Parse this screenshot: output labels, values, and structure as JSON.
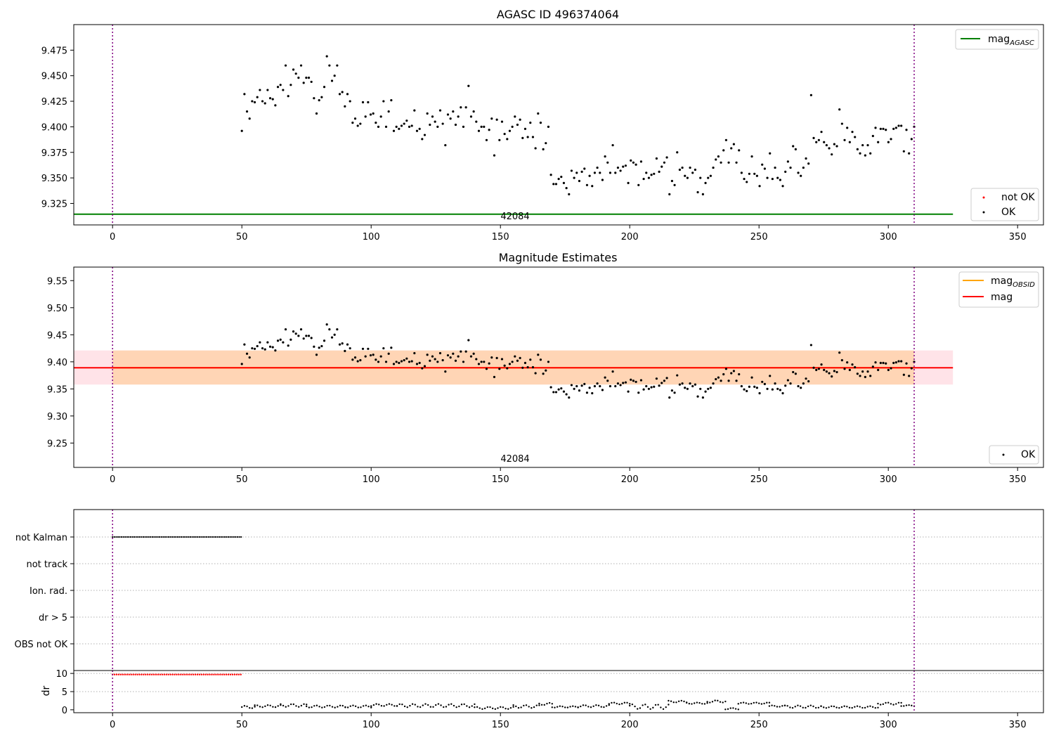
{
  "chart_data": [
    {
      "type": "scatter",
      "title": "AGASC ID 496374064",
      "xlim": [
        -15,
        360
      ],
      "ylim": [
        9.304,
        9.5
      ],
      "xticks": [
        0,
        50,
        100,
        150,
        200,
        250,
        300,
        350
      ],
      "yticks": [
        9.325,
        9.35,
        9.375,
        9.4,
        9.425,
        9.45,
        9.475
      ],
      "ytick_format": 3,
      "grid": false,
      "vlines": [
        0,
        310
      ],
      "annotation": {
        "text": "42084",
        "x": 155,
        "y": 9.3115
      },
      "hline": {
        "name": "mag_AGASC",
        "label_main": "mag",
        "label_sub": "AGASC",
        "y": 9.3145,
        "x": [
          -15,
          325
        ],
        "color": "#008000"
      },
      "legend_line_placement": "top-right",
      "legend_points_placement": "lower-right",
      "legend_points": [
        {
          "name": "not OK",
          "color": "#ff0000"
        },
        {
          "name": "OK",
          "color": "#000000"
        }
      ],
      "series_ref": "ok_points"
    },
    {
      "type": "scatter",
      "title": "Magnitude Estimates",
      "xlim": [
        -15,
        360
      ],
      "ylim": [
        9.205,
        9.575
      ],
      "xticks": [
        0,
        50,
        100,
        150,
        200,
        250,
        300,
        350
      ],
      "yticks": [
        9.25,
        9.3,
        9.35,
        9.4,
        9.45,
        9.5,
        9.55
      ],
      "ytick_format": 2,
      "grid": false,
      "vlines": [
        0,
        310
      ],
      "annotation": {
        "text": "42084",
        "x": 155,
        "y": 9.216
      },
      "band_pink": {
        "y": [
          9.358,
          9.421
        ],
        "x": [
          -15,
          325
        ],
        "color": "#ffc0cb"
      },
      "band_orange": {
        "y": [
          9.358,
          9.421
        ],
        "x": [
          0,
          310
        ],
        "color": "#ffa500"
      },
      "hline_orange": {
        "name": "mag_OBSID",
        "label_main": "mag",
        "label_sub": "OBSID",
        "y": 9.389,
        "x": [
          0,
          310
        ],
        "color": "#ffa500"
      },
      "hline_red": {
        "name": "mag",
        "y": 9.389,
        "x": [
          -15,
          325
        ],
        "color": "#ff0000"
      },
      "legend_line_placement": "top-right",
      "legend_points_placement": "lower-right",
      "legend_points": [
        {
          "name": "OK",
          "color": "#000000"
        }
      ],
      "series_ref": "ok_points"
    },
    {
      "type": "scatter",
      "title": "",
      "ylabel": "",
      "xlim": [
        -15,
        360
      ],
      "categories": [
        "not Kalman",
        "not track",
        "Ion. rad.",
        "dr > 5",
        "OBS not OK"
      ],
      "flags": {
        "not Kalman": [
          0,
          50
        ]
      },
      "vlines": [
        0,
        310
      ]
    },
    {
      "type": "scatter",
      "title": "",
      "ylabel": "dr",
      "xlim": [
        -15,
        360
      ],
      "ylim": [
        -0.8,
        10.8
      ],
      "xticks": [
        0,
        50,
        100,
        150,
        200,
        250,
        300,
        350
      ],
      "yticks": [
        0,
        5,
        10
      ],
      "vlines": [
        0,
        310
      ],
      "red_points": {
        "x": [
          0,
          50
        ],
        "y": 9.7,
        "color": "#ff0000"
      },
      "dr_segments": [
        {
          "x": [
            50,
            55
          ],
          "y": [
            0.4,
            1.1
          ]
        },
        {
          "x": [
            55,
            65
          ],
          "y": [
            0.7,
            1.3
          ]
        },
        {
          "x": [
            65,
            75
          ],
          "y": [
            0.8,
            1.6
          ]
        },
        {
          "x": [
            75,
            90
          ],
          "y": [
            0.6,
            1.2
          ]
        },
        {
          "x": [
            90,
            100
          ],
          "y": [
            0.6,
            1.2
          ]
        },
        {
          "x": [
            100,
            110
          ],
          "y": [
            1.0,
            1.6
          ]
        },
        {
          "x": [
            110,
            140
          ],
          "y": [
            0.7,
            1.6
          ]
        },
        {
          "x": [
            140,
            155
          ],
          "y": [
            0.2,
            0.8
          ]
        },
        {
          "x": [
            155,
            165
          ],
          "y": [
            0.5,
            1.3
          ]
        },
        {
          "x": [
            165,
            170
          ],
          "y": [
            1.3,
            1.9
          ]
        },
        {
          "x": [
            170,
            180
          ],
          "y": [
            0.6,
            1.0
          ]
        },
        {
          "x": [
            180,
            192
          ],
          "y": [
            0.7,
            1.3
          ]
        },
        {
          "x": [
            192,
            200
          ],
          "y": [
            1.5,
            2.0
          ]
        },
        {
          "x": [
            200,
            215
          ],
          "y": [
            0.2,
            1.5
          ]
        },
        {
          "x": [
            215,
            222
          ],
          "y": [
            2.0,
            2.5
          ]
        },
        {
          "x": [
            222,
            230
          ],
          "y": [
            1.6,
            2.0
          ]
        },
        {
          "x": [
            230,
            237
          ],
          "y": [
            2.0,
            2.6
          ]
        },
        {
          "x": [
            237,
            242
          ],
          "y": [
            0.1,
            0.5
          ]
        },
        {
          "x": [
            242,
            254
          ],
          "y": [
            1.6,
            2.0
          ]
        },
        {
          "x": [
            254,
            260
          ],
          "y": [
            0.8,
            1.2
          ]
        },
        {
          "x": [
            260,
            274
          ],
          "y": [
            0.5,
            1.2
          ]
        },
        {
          "x": [
            274,
            296
          ],
          "y": [
            0.5,
            1.0
          ]
        },
        {
          "x": [
            296,
            305
          ],
          "y": [
            1.4,
            2.0
          ]
        },
        {
          "x": [
            305,
            310
          ],
          "y": [
            1.0,
            1.3
          ]
        }
      ]
    }
  ],
  "ok_points": {
    "color": "#000000",
    "x_start": 50,
    "x_end": 310,
    "y": [
      9.396,
      9.432,
      9.415,
      9.408,
      9.425,
      9.424,
      9.429,
      9.436,
      9.425,
      9.423,
      9.436,
      9.428,
      9.427,
      9.421,
      9.439,
      9.441,
      9.436,
      9.46,
      9.43,
      9.441,
      9.456,
      9.452,
      9.448,
      9.46,
      9.443,
      9.448,
      9.448,
      9.444,
      9.428,
      9.413,
      9.426,
      9.429,
      9.439,
      9.469,
      9.46,
      9.445,
      9.45,
      9.46,
      9.432,
      9.434,
      9.42,
      9.432,
      9.425,
      9.404,
      9.408,
      9.401,
      9.403,
      9.424,
      9.41,
      9.424,
      9.412,
      9.413,
      9.404,
      9.4,
      9.41,
      9.425,
      9.4,
      9.415,
      9.426,
      9.396,
      9.4,
      9.398,
      9.401,
      9.403,
      9.406,
      9.4,
      9.401,
      9.416,
      9.396,
      9.398,
      9.388,
      9.392,
      9.413,
      9.402,
      9.41,
      9.405,
      9.4,
      9.416,
      9.403,
      9.382,
      9.412,
      9.408,
      9.415,
      9.402,
      9.41,
      9.419,
      9.4,
      9.419,
      9.44,
      9.41,
      9.415,
      9.405,
      9.396,
      9.4,
      9.4,
      9.387,
      9.397,
      9.408,
      9.372,
      9.407,
      9.387,
      9.405,
      9.393,
      9.388,
      9.396,
      9.4,
      9.41,
      9.402,
      9.407,
      9.389,
      9.398,
      9.39,
      9.404,
      9.39,
      9.379,
      9.413,
      9.404,
      9.378,
      9.384,
      9.4,
      9.353,
      9.344,
      9.344,
      9.349,
      9.351,
      9.345,
      9.34,
      9.334,
      9.357,
      9.35,
      9.355,
      9.347,
      9.356,
      9.359,
      9.343,
      9.352,
      9.342,
      9.355,
      9.36,
      9.355,
      9.348,
      9.371,
      9.365,
      9.355,
      9.382,
      9.355,
      9.36,
      9.357,
      9.361,
      9.362,
      9.345,
      9.367,
      9.365,
      9.363,
      9.343,
      9.366,
      9.349,
      9.355,
      9.35,
      9.353,
      9.354,
      9.369,
      9.356,
      9.361,
      9.365,
      9.37,
      9.334,
      9.347,
      9.343,
      9.375,
      9.358,
      9.36,
      9.352,
      9.35,
      9.36,
      9.355,
      9.358,
      9.336,
      9.35,
      9.334,
      9.345,
      9.35,
      9.352,
      9.36,
      9.368,
      9.371,
      9.365,
      9.377,
      9.387,
      9.365,
      9.379,
      9.383,
      9.365,
      9.377,
      9.355,
      9.349,
      9.346,
      9.354,
      9.371,
      9.354,
      9.352,
      9.342,
      9.363,
      9.359,
      9.35,
      9.374,
      9.349,
      9.36,
      9.35,
      9.348,
      9.342,
      9.356,
      9.366,
      9.36,
      9.381,
      9.378,
      9.355,
      9.352,
      9.36,
      9.369,
      9.364,
      9.431,
      9.389,
      9.385,
      9.387,
      9.395,
      9.385,
      9.382,
      9.379,
      9.373,
      9.383,
      9.381,
      9.417,
      9.403,
      9.387,
      9.399,
      9.385,
      9.395,
      9.39,
      9.378,
      9.374,
      9.382,
      9.372,
      9.382,
      9.374,
      9.391,
      9.399,
      9.385,
      9.398,
      9.398,
      9.397,
      9.385,
      9.388,
      9.398,
      9.399,
      9.401,
      9.401,
      9.376,
      9.397,
      9.374,
      9.388,
      9.4
    ]
  }
}
